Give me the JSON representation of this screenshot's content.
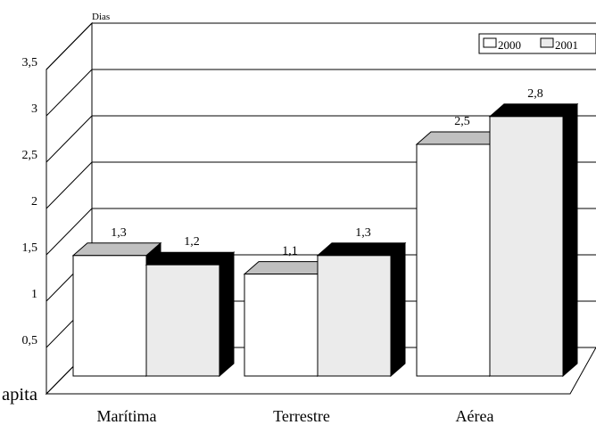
{
  "chart_data": {
    "type": "bar",
    "ylabel": "Dias",
    "categories": [
      "Marítima",
      "Terrestre",
      "Aérea"
    ],
    "series": [
      {
        "name": "2000",
        "values": [
          1.3,
          1.1,
          2.5
        ],
        "labels": [
          "1,3",
          "1,1",
          "2,5"
        ],
        "color": "#ffffff",
        "top_color": "#c0c0c0",
        "side_color": "#000000"
      },
      {
        "name": "2001",
        "values": [
          1.2,
          1.3,
          2.8
        ],
        "labels": [
          "1,2",
          "1,3",
          "2,8"
        ],
        "color": "#ebebeb",
        "top_color": "#000000",
        "side_color": "#000000"
      }
    ],
    "ylim": [
      0,
      3.5
    ],
    "yticks": [
      {
        "value": 0.5,
        "label": "0,5"
      },
      {
        "value": 1,
        "label": "1"
      },
      {
        "value": 1.5,
        "label": "1,5"
      },
      {
        "value": 2,
        "label": "2"
      },
      {
        "value": 2.5,
        "label": "2,5"
      },
      {
        "value": 3,
        "label": "3"
      },
      {
        "value": 3.5,
        "label": "3,5"
      }
    ],
    "grid": true,
    "legend_position": "top-right",
    "stray_text": "apita"
  }
}
